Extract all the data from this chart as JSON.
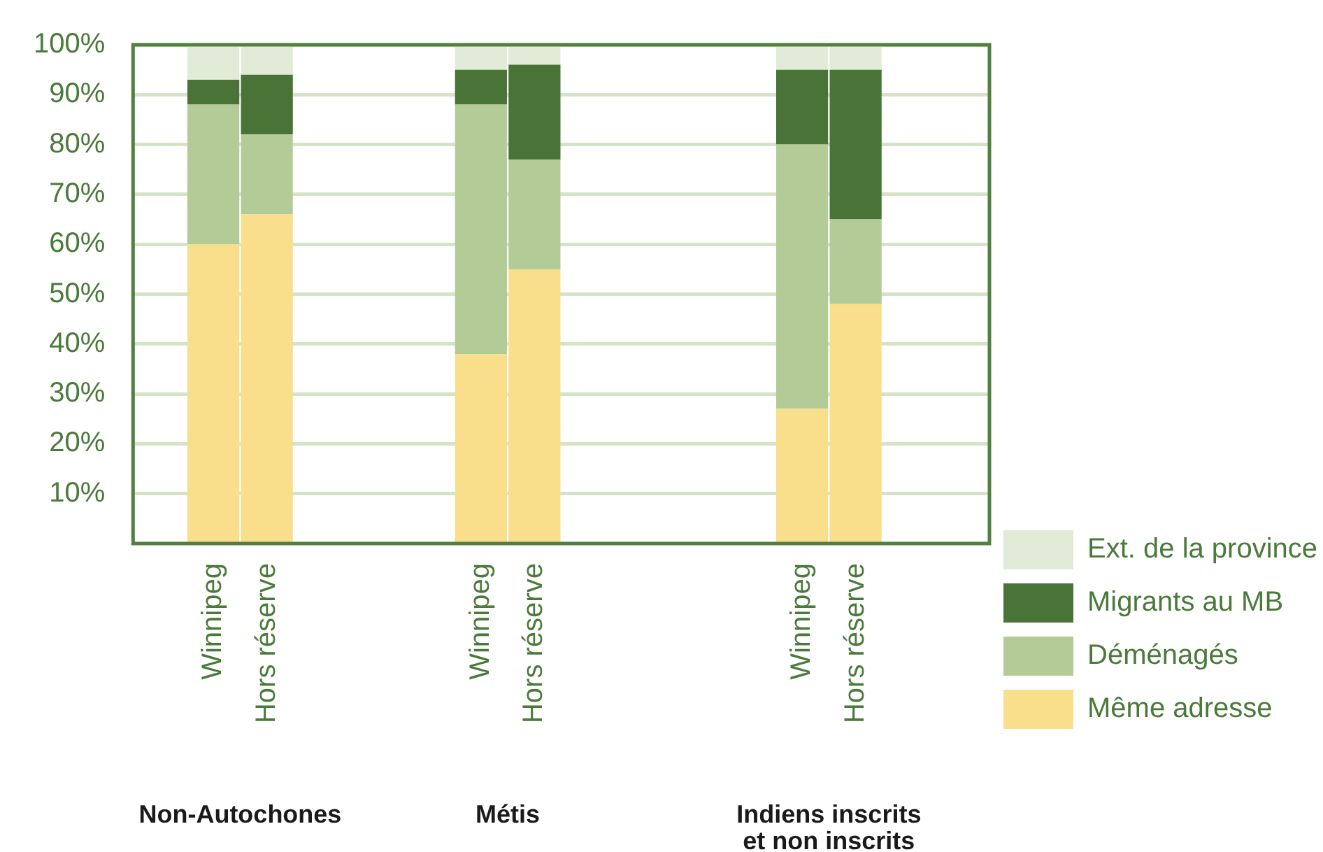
{
  "chart_data": {
    "type": "bar",
    "stacked": true,
    "categories": [
      null,
      "Winnipeg",
      "Hors réserve",
      null,
      null,
      null,
      "Winnipeg",
      "Hors réserve",
      null,
      null,
      null,
      null,
      "Winnipeg",
      "Hors réserve",
      null,
      null
    ],
    "series": [
      {
        "name": "Même adresse",
        "color": "#f9df8b",
        "values": [
          null,
          60,
          66,
          null,
          null,
          null,
          38,
          55,
          null,
          null,
          null,
          null,
          27,
          48,
          null,
          null
        ]
      },
      {
        "name": "Déménagés",
        "color": "#b3cc97",
        "values": [
          null,
          28,
          16,
          null,
          null,
          null,
          50,
          22,
          null,
          null,
          null,
          null,
          53,
          17,
          null,
          null
        ]
      },
      {
        "name": "Migrants au MB",
        "color": "#4a7338",
        "values": [
          null,
          5,
          12,
          null,
          null,
          null,
          7,
          19,
          null,
          null,
          null,
          null,
          15,
          30,
          null,
          null
        ]
      },
      {
        "name": "Ext. de la province",
        "color": "#e2ebd7",
        "values": [
          null,
          7,
          6,
          null,
          null,
          null,
          5,
          4,
          null,
          null,
          null,
          null,
          5,
          5,
          null,
          null
        ]
      }
    ],
    "ylim": [
      0,
      100
    ],
    "yticks": [
      {
        "value": 10,
        "label": "10%"
      },
      {
        "value": 20,
        "label": "20%"
      },
      {
        "value": 30,
        "label": "30%"
      },
      {
        "value": 40,
        "label": "40%"
      },
      {
        "value": 50,
        "label": "50%"
      },
      {
        "value": 60,
        "label": "60%"
      },
      {
        "value": 70,
        "label": "70%"
      },
      {
        "value": 80,
        "label": "80%"
      },
      {
        "value": 90,
        "label": "90%"
      },
      {
        "value": 100,
        "label": "100%"
      }
    ],
    "grid": "y",
    "legend": "right",
    "annotations": [
      "Non-Autochones",
      "Métis",
      "Indiens inscrits\net non inscrits"
    ]
  }
}
